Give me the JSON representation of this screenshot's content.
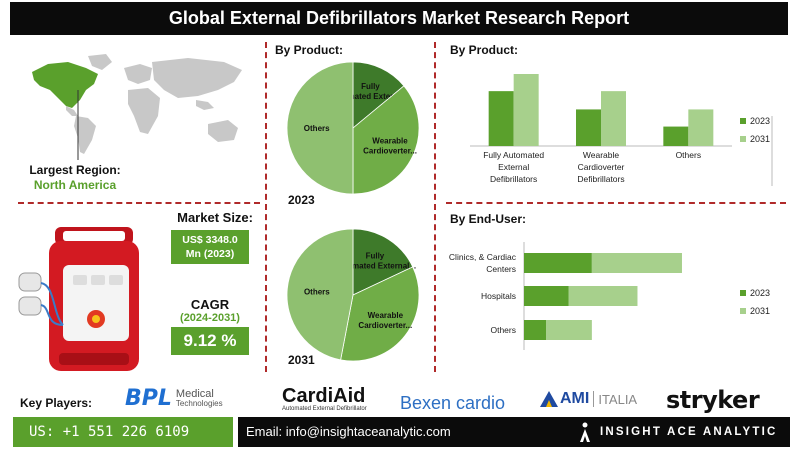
{
  "header": {
    "title": "Global External Defibrillators Market Research Report"
  },
  "region": {
    "label": "Largest Region:",
    "value": "North America"
  },
  "market": {
    "size_label": "Market Size:",
    "size_line1": "US$ 3348.0",
    "size_line2": "Mn (2023)",
    "cagr_label": "CAGR",
    "cagr_period": "(2024-2031)",
    "cagr_value": "9.12 %"
  },
  "sections": {
    "pie_title": "By Product:",
    "product_title": "By Product:",
    "enduser_title": "By End-User:"
  },
  "key_players": {
    "label": "Key Players:",
    "logos": [
      "BPL",
      "Medical",
      "Technologies",
      "CardiAid",
      "Automated External Defibrillator",
      "Bexen cardio",
      "AMI",
      "ITALIA",
      "stryker"
    ]
  },
  "footer": {
    "phone": "US: +1 551 226 6109",
    "email": "Email: info@insightaceanalytic.com",
    "brand": "INSIGHT ACE ANALYTIC"
  },
  "colors": {
    "dark_green": "#5aa02c",
    "light_green": "#a7d08c",
    "pie_dark": "#3e7a2a",
    "pie_mid": "#70ad47",
    "pie_light": "#8fc070",
    "accent_red": "#b02a2a",
    "ami_blue": "#1f4aa0",
    "stryker_black": "#111111"
  },
  "chart_data": [
    {
      "type": "pie",
      "year_label": "2023",
      "slices": [
        {
          "label": "Fully Automated External...",
          "value": 14
        },
        {
          "label": "Wearable Cardioverter...",
          "value": 36
        },
        {
          "label": "Others",
          "value": 50
        }
      ]
    },
    {
      "type": "pie",
      "year_label": "2031",
      "slices": [
        {
          "label": "Fully Automated External...",
          "value": 18
        },
        {
          "label": "Wearable Cardioverter...",
          "value": 35
        },
        {
          "label": "Others",
          "value": 47
        }
      ]
    },
    {
      "type": "bar",
      "categories": [
        "Fully Automated External Defibrillators",
        "Wearable Cardioverter Defibrillators",
        "Others"
      ],
      "category_lines": [
        [
          "Fully Automated",
          "External",
          "Defibrillators"
        ],
        [
          "Wearable",
          "Cardioverter",
          "Defibrillators"
        ],
        [
          "Others"
        ]
      ],
      "series": [
        {
          "name": "2023",
          "values": [
            48,
            32,
            17
          ],
          "color": "#5aa02c"
        },
        {
          "name": "2031",
          "values": [
            63,
            48,
            32
          ],
          "color": "#a7d08c"
        }
      ],
      "ylim": [
        0,
        70
      ],
      "legend": "right"
    },
    {
      "type": "stacked-horizontal-bar",
      "categories": [
        "Clinics, & Cardiac Centers",
        "Hospitals",
        "Others"
      ],
      "category_lines": [
        [
          "Clinics, & Cardiac",
          "Centers"
        ],
        [
          "Hospitals"
        ],
        [
          "Others"
        ]
      ],
      "series": [
        {
          "name": "2023",
          "values": [
            61,
            40,
            20
          ],
          "color": "#5aa02c"
        },
        {
          "name": "2031",
          "values": [
            81,
            62,
            41
          ],
          "color": "#a7d08c"
        }
      ],
      "xlim": [
        0,
        160
      ],
      "legend": "right"
    }
  ]
}
